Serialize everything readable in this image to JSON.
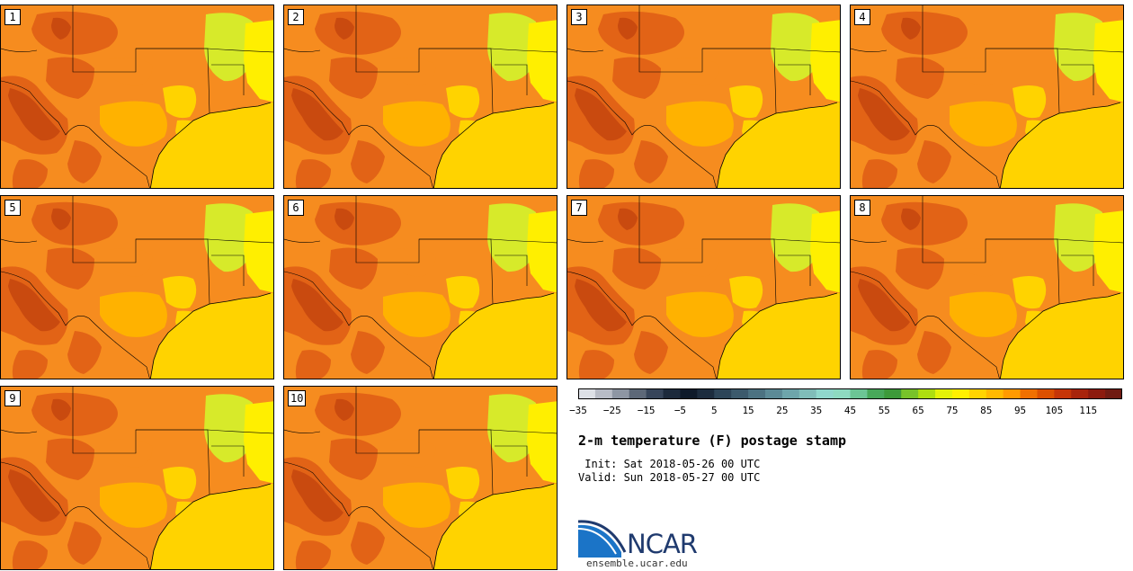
{
  "figure": {
    "title": "2-m temperature (F) postage stamp",
    "init_line": " Init: Sat 2018-05-26 00 UTC",
    "valid_line": "Valid: Sun 2018-05-27 00 UTC",
    "site": "ensemble.ucar.edu",
    "logo_text": "NCAR"
  },
  "members": [
    {
      "label": "1"
    },
    {
      "label": "2"
    },
    {
      "label": "3"
    },
    {
      "label": "4"
    },
    {
      "label": "5"
    },
    {
      "label": "6"
    },
    {
      "label": "7"
    },
    {
      "label": "8"
    },
    {
      "label": "9"
    },
    {
      "label": "10"
    }
  ],
  "colorbar": {
    "ticks": [
      "−35",
      "−25",
      "−15",
      "−5",
      "5",
      "15",
      "25",
      "35",
      "45",
      "55",
      "65",
      "75",
      "85",
      "95",
      "105",
      "115"
    ],
    "colors": [
      "#dde0e6",
      "#b8bcc6",
      "#8e96a3",
      "#5d6878",
      "#37455a",
      "#1d2a3c",
      "#0e1a2a",
      "#1c2c3e",
      "#2d4558",
      "#3c5a6c",
      "#4c7281",
      "#5c8a96",
      "#6ea5ab",
      "#80bdb9",
      "#90d7cc",
      "#8edac0",
      "#6cc595",
      "#48a85a",
      "#3d9a3a",
      "#78c32a",
      "#aede10",
      "#e4f208",
      "#fff000",
      "#ffd400",
      "#ffb900",
      "#ff9a00",
      "#f07000",
      "#dc5000",
      "#c53508",
      "#a8240c",
      "#8c1a0e",
      "#701a12"
    ]
  },
  "colors": {
    "warm": "#f68c1f",
    "hot": "#e26316",
    "hotter": "#c94a0f",
    "mild": "#ffb200",
    "cool": "#ffd300",
    "coolest": "#d7ea2a",
    "yellow": "#ffef00",
    "border": "#000000"
  }
}
